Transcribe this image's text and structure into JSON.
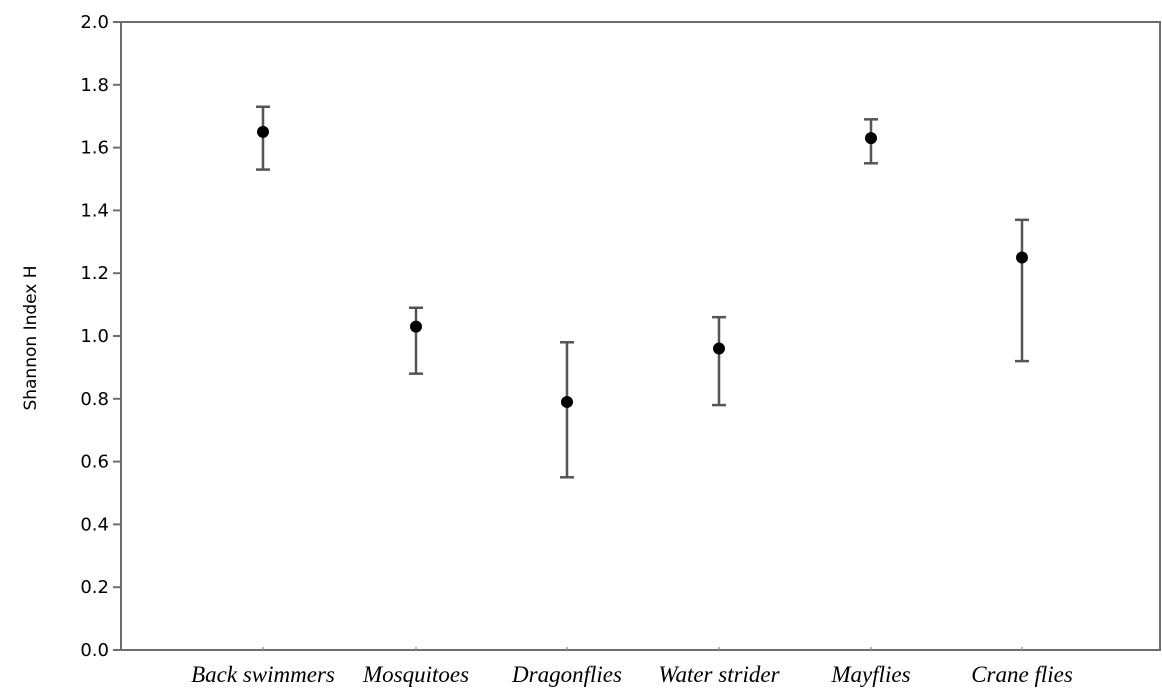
{
  "chart_data": {
    "type": "scatter",
    "title": "",
    "xlabel": "",
    "ylabel": "Shannon Index H",
    "ylim": [
      0.0,
      2.0
    ],
    "yticks": [
      "0.0",
      "0.2",
      "0.4",
      "0.6",
      "0.8",
      "1.0",
      "1.2",
      "1.4",
      "1.6",
      "1.8",
      "2.0"
    ],
    "categories": [
      "Back swimmers",
      "Mosquitoes",
      "Dragonflies",
      "Water strider",
      "Mayflies",
      "Crane flies"
    ],
    "series": [
      {
        "values": [
          1.65,
          1.03,
          0.79,
          0.96,
          1.63,
          1.25
        ],
        "error_low": [
          1.53,
          0.88,
          0.55,
          0.78,
          1.55,
          0.92
        ],
        "error_high": [
          1.73,
          1.09,
          0.98,
          1.06,
          1.69,
          1.37
        ]
      }
    ],
    "grid": false,
    "legend": "none"
  }
}
